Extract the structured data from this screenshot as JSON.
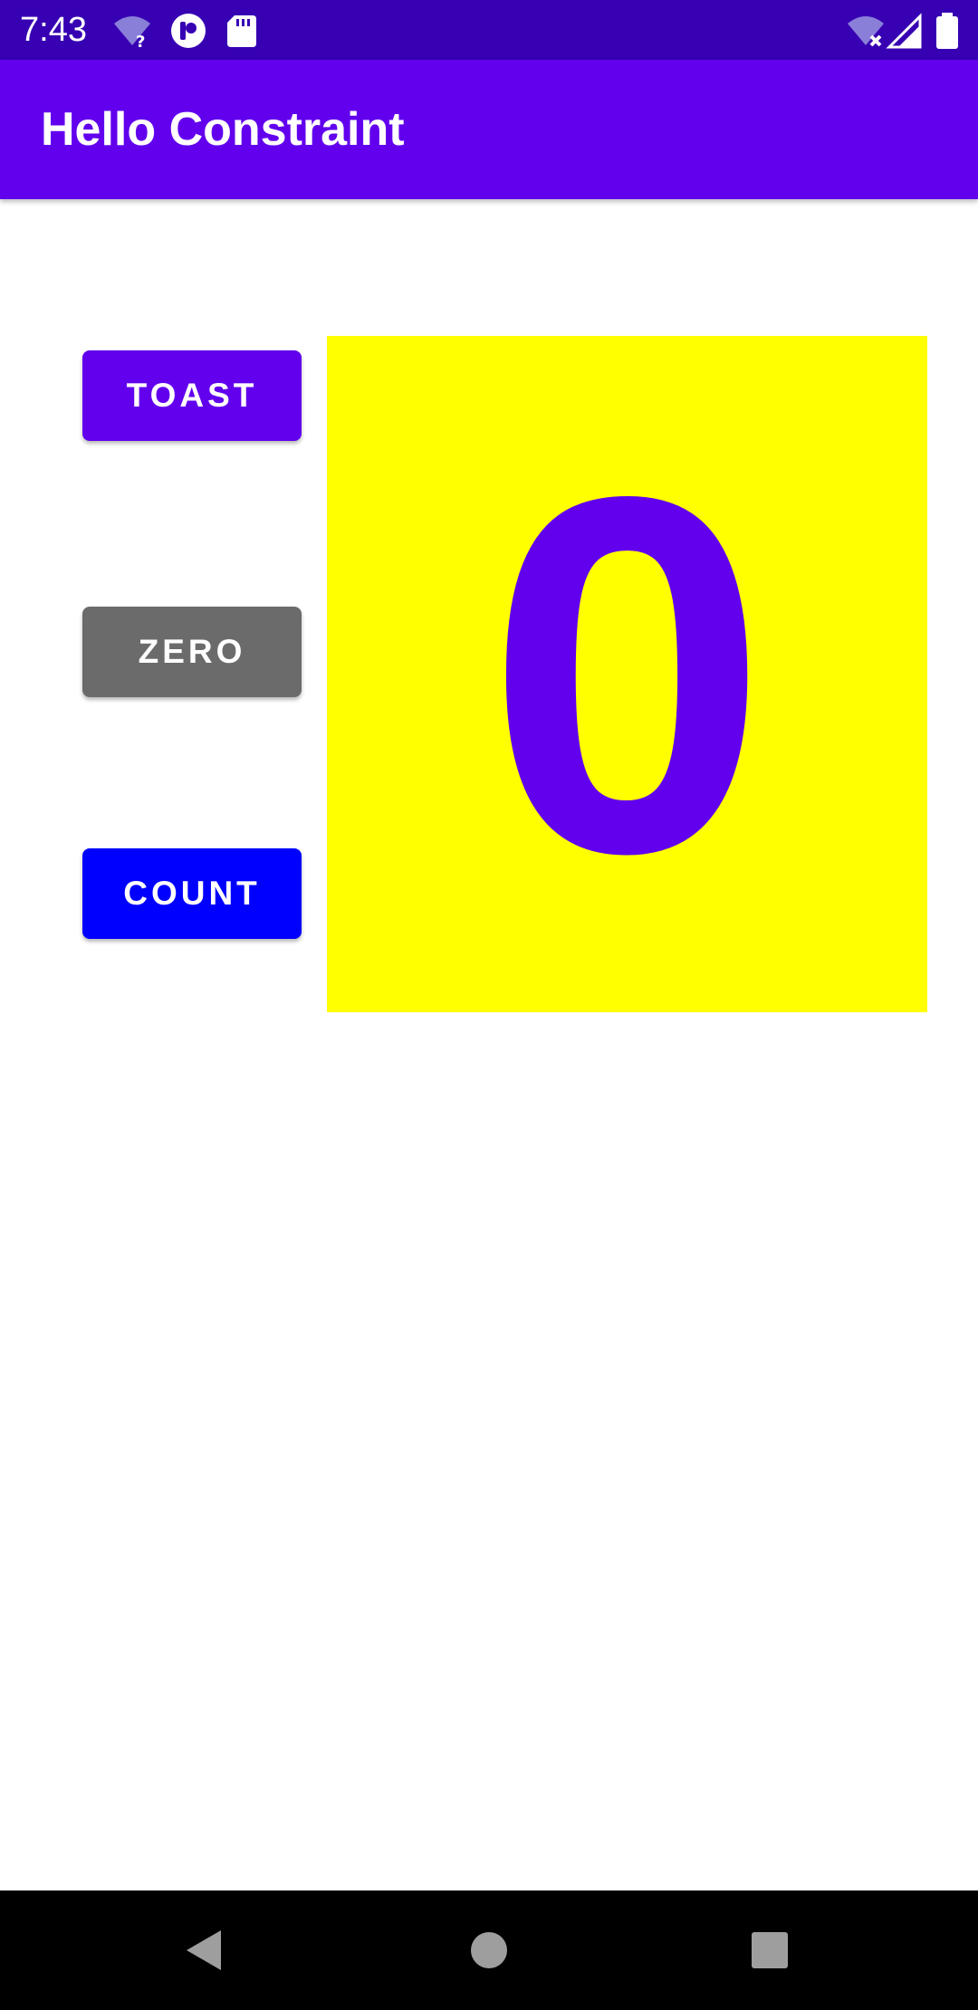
{
  "status_bar": {
    "time": "7:43",
    "left_icons": [
      "wifi-question-icon",
      "app-notification-icon",
      "sd-card-icon"
    ],
    "right_icons": [
      "wifi-off-icon",
      "cell-signal-icon",
      "battery-icon"
    ],
    "background": "#3700B3"
  },
  "app_bar": {
    "title": "Hello Constraint",
    "background": "#6200EE"
  },
  "buttons": {
    "toast_label": "TOAST",
    "zero_label": "ZERO",
    "count_label": "COUNT",
    "toast_color": "#6200EE",
    "zero_color": "#6B6B6B",
    "count_color": "#0000FF"
  },
  "count_panel": {
    "value": "0",
    "background": "#FFFF00",
    "text_color": "#6200EE"
  },
  "nav_bar": {
    "icons": [
      "back-icon",
      "home-icon",
      "recents-icon"
    ]
  }
}
